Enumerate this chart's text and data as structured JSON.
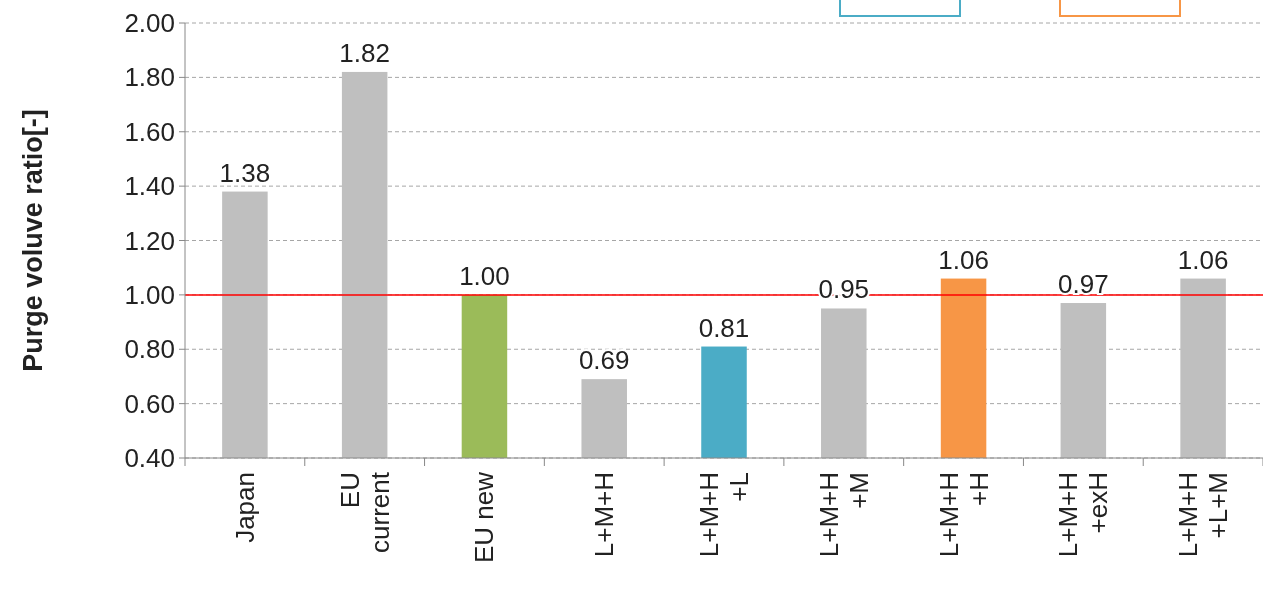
{
  "chart_data": {
    "type": "bar",
    "ylabel": "Purge voluve ratio[-]",
    "categories": [
      "Japan",
      "EU\ncurrent",
      "EU new",
      "L+M+H",
      "L+M+H\n+L",
      "L+M+H\n+M",
      "L+M+H\n+H",
      "L+M+H\n+exH",
      "L+M+H\n+L+M"
    ],
    "values": [
      1.38,
      1.82,
      1.0,
      0.69,
      0.81,
      0.95,
      1.06,
      0.97,
      1.06
    ],
    "colors": [
      "#bfbfbf",
      "#bfbfbf",
      "#9bbb59",
      "#bfbfbf",
      "#4bacc6",
      "#bfbfbf",
      "#f79646",
      "#bfbfbf",
      "#bfbfbf"
    ],
    "ylim": [
      0.4,
      2.0
    ],
    "yticks": [
      {
        "value": 0.4,
        "label": "0.40"
      },
      {
        "value": 0.6,
        "label": "0.60"
      },
      {
        "value": 0.8,
        "label": "0.80"
      },
      {
        "value": 1.0,
        "label": "1.00"
      },
      {
        "value": 1.2,
        "label": "1.20"
      },
      {
        "value": 1.4,
        "label": "1.40"
      },
      {
        "value": 1.6,
        "label": "1.60"
      },
      {
        "value": 1.8,
        "label": "1.80"
      },
      {
        "value": 2.0,
        "label": "2.00"
      }
    ],
    "value_labels": [
      "1.38",
      "1.82",
      "1.00",
      "0.69",
      "0.81",
      "0.95",
      "1.06",
      "0.97",
      "1.06"
    ],
    "ref_lines": [
      {
        "axis": "y",
        "value": 1.0,
        "color": "#ff0000"
      }
    ],
    "grid": "y"
  }
}
